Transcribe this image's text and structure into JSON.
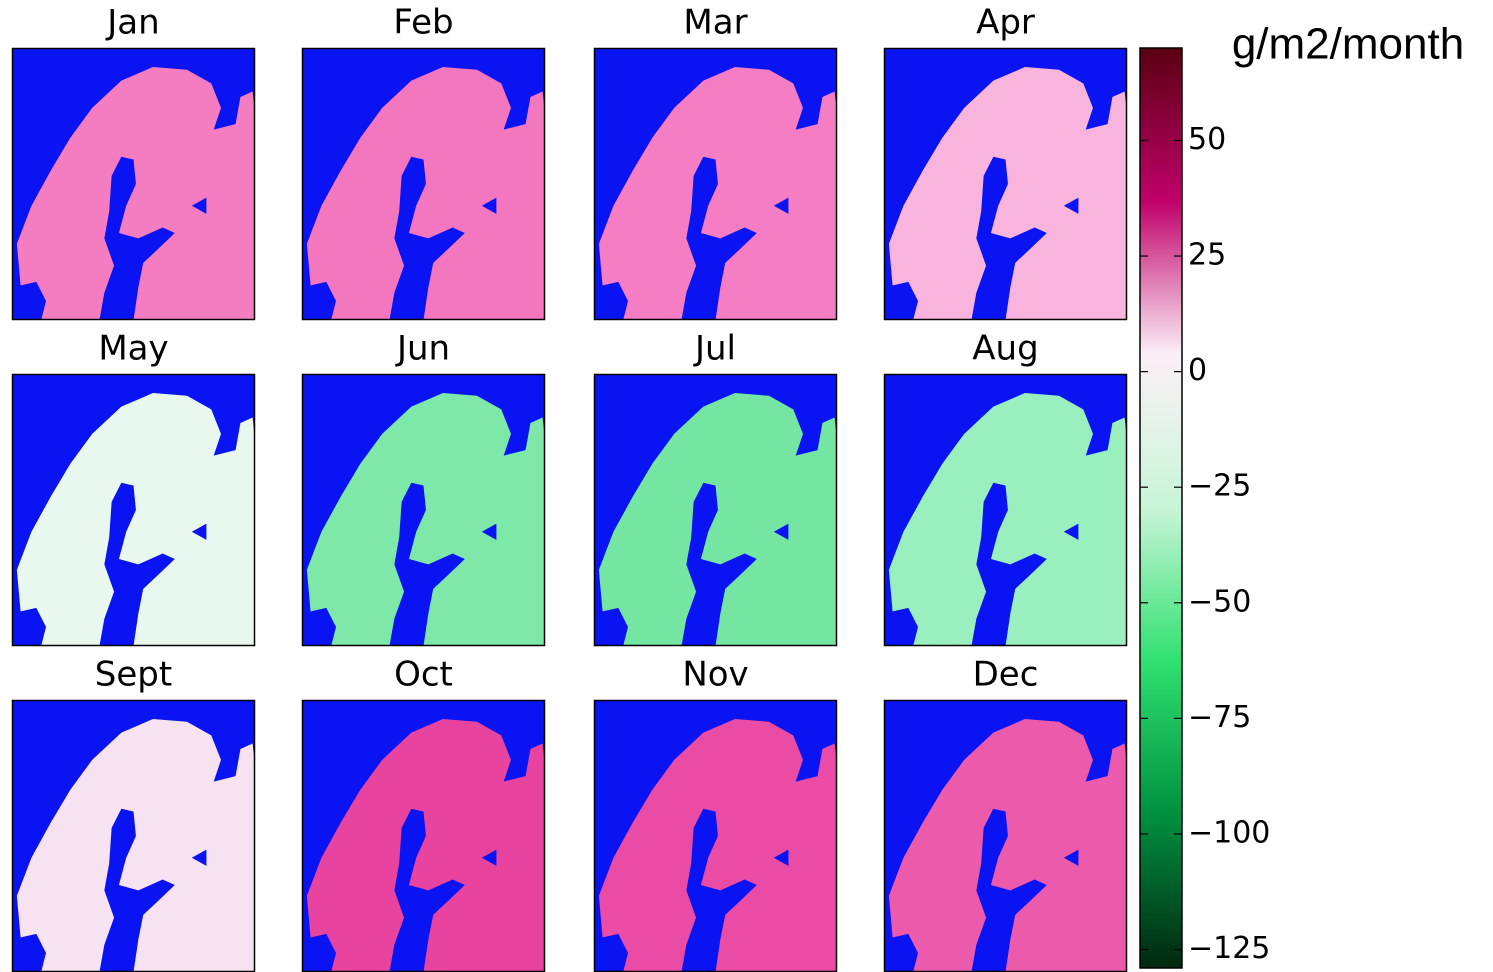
{
  "chart_data": {
    "type": "map-panels",
    "panels": [
      "Jan",
      "Feb",
      "Mar",
      "Apr",
      "May",
      "Jun",
      "Jul",
      "Aug",
      "Sept",
      "Oct",
      "Nov",
      "Dec"
    ],
    "colors": [
      "#f47dc2",
      "#f277bf",
      "#f47dc3",
      "#f8b4dc",
      "#e9f8ee",
      "#7de8a8",
      "#74e6a2",
      "#9aefbe",
      "#f6e2f0",
      "#e8449f",
      "#ea4ba4",
      "#ec5aac"
    ],
    "sea_color": "#0a14f2",
    "colorbar_label": "g/m2/month",
    "ylim": [
      -129,
      70
    ],
    "yticks": [
      {
        "value": 50,
        "label": "50"
      },
      {
        "value": 25,
        "label": "25"
      },
      {
        "value": 0,
        "label": "0"
      },
      {
        "value": -25,
        "label": "−25"
      },
      {
        "value": -50,
        "label": "−50"
      },
      {
        "value": -75,
        "label": "−75"
      },
      {
        "value": -100,
        "label": "−100"
      },
      {
        "value": -125,
        "label": "−125"
      }
    ],
    "colormap": [
      "#5a0012",
      "#c0006a",
      "#fcf0f7",
      "#c8f5d8",
      "#30e070",
      "#009040",
      "#002810"
    ]
  }
}
